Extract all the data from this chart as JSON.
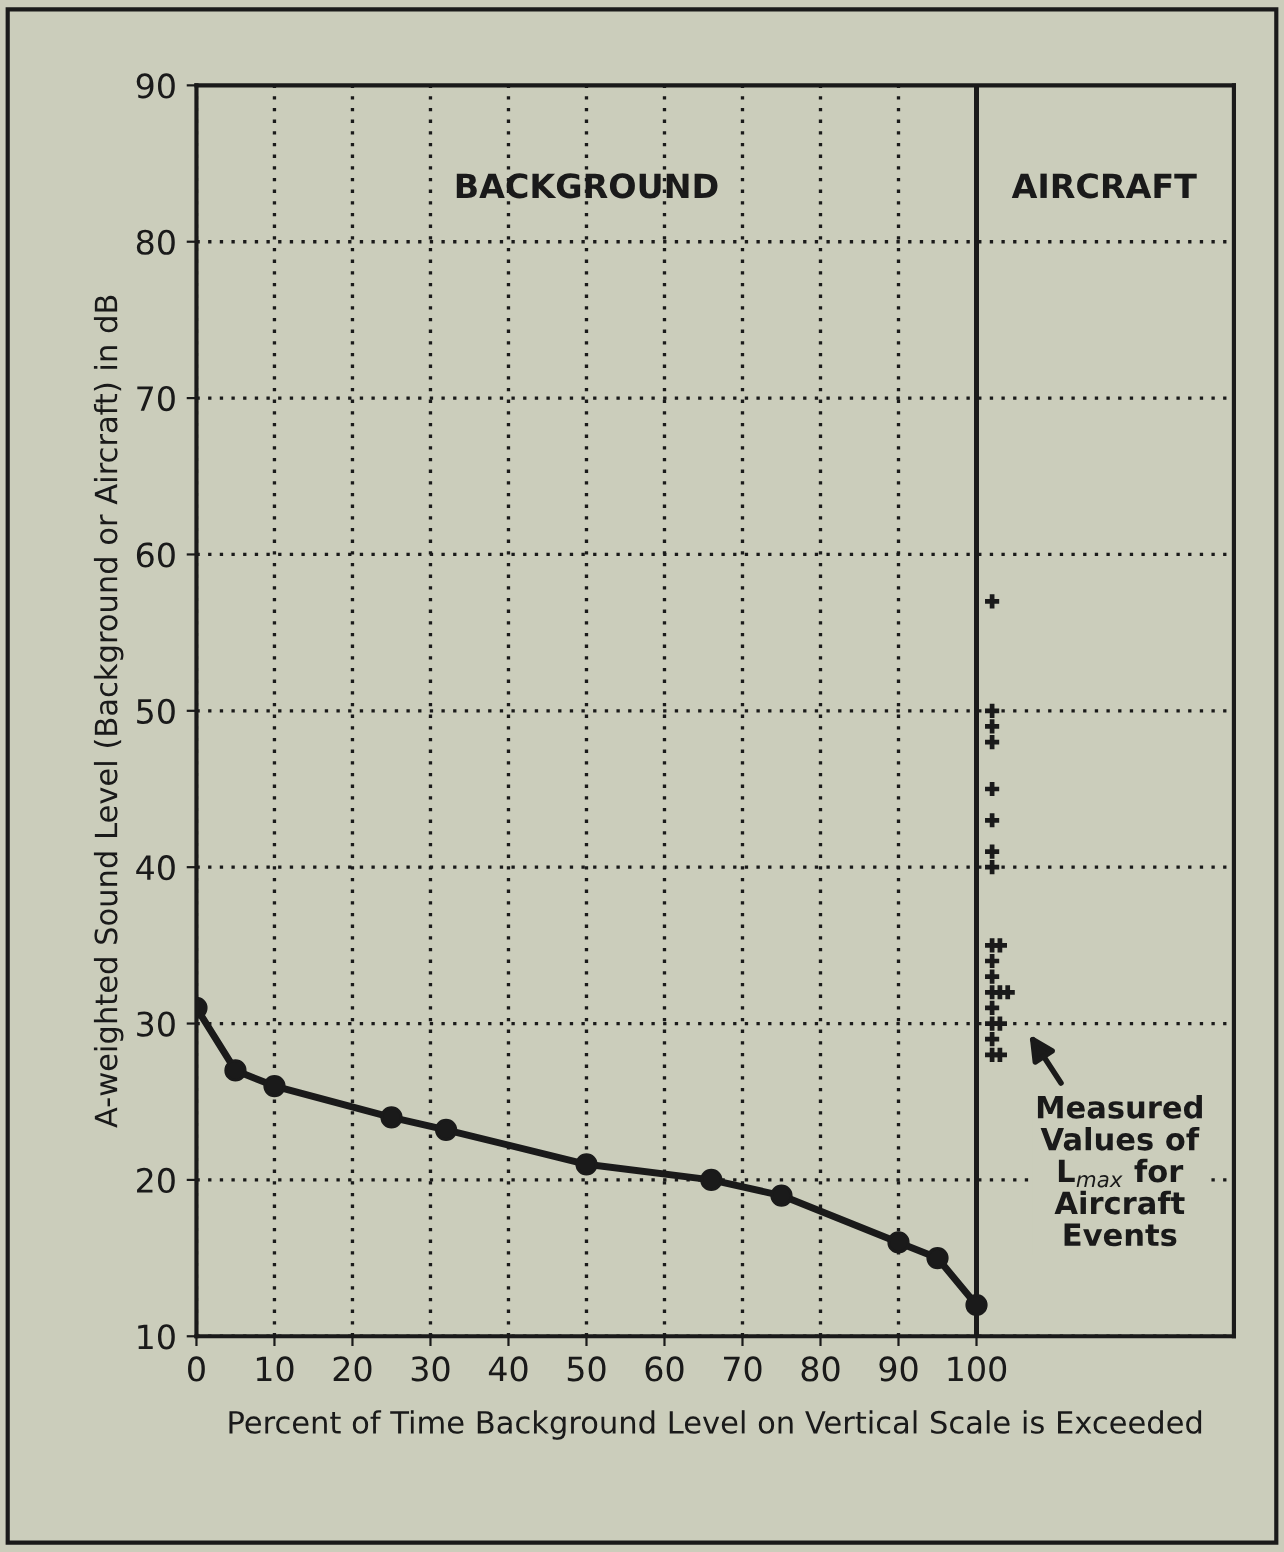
{
  "chart_data": {
    "type": "line",
    "title": "BACKGROUND",
    "series": [
      {
        "color": "#1a1a1a",
        "x": [
          0,
          5,
          10,
          25,
          32,
          50,
          66,
          75,
          90,
          95,
          100
        ],
        "values": [
          31,
          27,
          26,
          24,
          23.2,
          21,
          20,
          19,
          16,
          15,
          12
        ]
      },
      {
        "type": "scatter",
        "marker": "cross",
        "color": "#1a1a1a",
        "x": [
          102,
          102,
          102,
          102,
          102,
          102,
          102,
          102,
          102,
          102,
          102,
          102,
          102,
          102,
          102,
          102,
          103,
          103,
          103,
          103,
          104
        ],
        "values": [
          57,
          50,
          49,
          48,
          45,
          43,
          41,
          40,
          35,
          34,
          33,
          32,
          31,
          30,
          29,
          28,
          35,
          32,
          30,
          28,
          32
        ]
      }
    ],
    "xlim": [
      0,
      133
    ],
    "xticks": [
      0,
      10,
      20,
      30,
      40,
      50,
      60,
      70,
      80,
      90,
      100
    ],
    "ylim": [
      10,
      90
    ],
    "yticks": [
      10,
      20,
      30,
      40,
      50,
      60,
      70,
      80,
      90
    ],
    "xlabel": "Percent of Time Background Level on Vertical Scale is Exceeded",
    "ylabel": "A-weighted Sound Level (Background or Aircraft) in dB",
    "ref_lines": [
      {
        "axis": "x",
        "value": 100,
        "color": "#1a1a1a",
        "line_style": "solid"
      }
    ],
    "grid": true,
    "marker": "circle",
    "line_style": "solid",
    "annotations": [
      "AIRCRAFT",
      "Measured\nValues of\nL$_{max}$ for\nAircraft\nEvents"
    ]
  }
}
